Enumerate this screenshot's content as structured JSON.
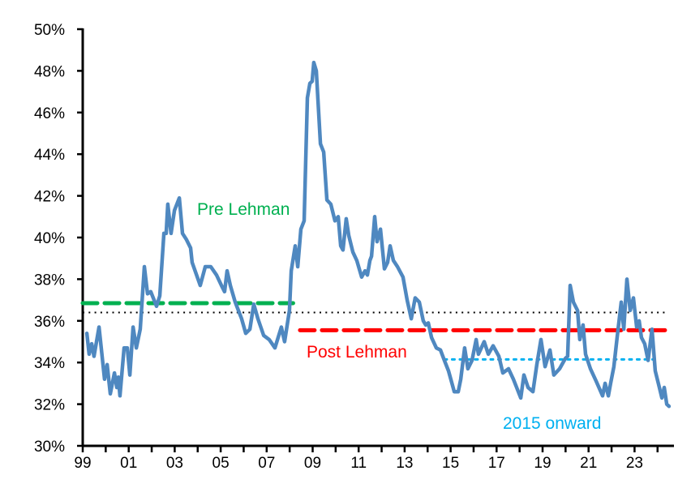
{
  "chart_data": {
    "type": "line",
    "title": "",
    "xlabel": "",
    "ylabel": "",
    "ylim": [
      30,
      50
    ],
    "xlim": [
      1999,
      2024.9
    ],
    "grid": false,
    "y_ticks": [
      "30%",
      "32%",
      "34%",
      "36%",
      "38%",
      "40%",
      "42%",
      "44%",
      "46%",
      "48%",
      "50%"
    ],
    "y_tick_values": [
      30,
      32,
      34,
      36,
      38,
      40,
      42,
      44,
      46,
      48,
      50
    ],
    "x_ticks": [
      "99",
      "01",
      "03",
      "05",
      "07",
      "09",
      "11",
      "13",
      "15",
      "17",
      "19",
      "21",
      "23"
    ],
    "x_tick_values": [
      1999,
      2001,
      2003,
      2005,
      2007,
      2009,
      2011,
      2013,
      2015,
      2017,
      2019,
      2021,
      2023
    ],
    "series": [
      {
        "color": "#4F88C0",
        "x": [
          1999.18,
          1999.28,
          1999.39,
          1999.49,
          1999.71,
          1999.95,
          2000.06,
          2000.2,
          2000.38,
          2000.48,
          2000.55,
          2000.62,
          2000.8,
          2000.94,
          2001.05,
          2001.19,
          2001.33,
          2001.5,
          2001.68,
          2001.82,
          2001.96,
          2002.21,
          2002.35,
          2002.53,
          2002.63,
          2002.7,
          2002.84,
          2002.99,
          2003.2,
          2003.34,
          2003.51,
          2003.69,
          2003.76,
          2004.11,
          2004.33,
          2004.57,
          2004.82,
          2005.03,
          2005.17,
          2005.28,
          2005.42,
          2005.63,
          2005.91,
          2006.09,
          2006.27,
          2006.44,
          2006.62,
          2006.87,
          2007.11,
          2007.36,
          2007.64,
          2007.78,
          2007.99,
          2008.07,
          2008.24,
          2008.35,
          2008.49,
          2008.63,
          2008.77,
          2008.88,
          2008.98,
          2009.05,
          2009.16,
          2009.34,
          2009.48,
          2009.62,
          2009.79,
          2009.97,
          2010.11,
          2010.22,
          2010.32,
          2010.46,
          2010.57,
          2010.75,
          2010.92,
          2011.13,
          2011.28,
          2011.38,
          2011.49,
          2011.56,
          2011.7,
          2011.8,
          2011.95,
          2012.12,
          2012.26,
          2012.37,
          2012.51,
          2012.69,
          2012.93,
          2013.11,
          2013.29,
          2013.46,
          2013.64,
          2013.81,
          2013.92,
          2014.03,
          2014.17,
          2014.38,
          2014.56,
          2014.73,
          2014.91,
          2015.16,
          2015.33,
          2015.44,
          2015.61,
          2015.75,
          2015.93,
          2016.11,
          2016.21,
          2016.46,
          2016.64,
          2016.85,
          2017.1,
          2017.27,
          2017.52,
          2017.73,
          2018.05,
          2018.19,
          2018.37,
          2018.58,
          2018.75,
          2018.93,
          2019.11,
          2019.32,
          2019.49,
          2019.74,
          2019.99,
          2020.09,
          2020.2,
          2020.34,
          2020.52,
          2020.62,
          2020.76,
          2020.87,
          2021.08,
          2021.33,
          2021.61,
          2021.72,
          2021.86,
          2021.96,
          2022.1,
          2022.24,
          2022.42,
          2022.53,
          2022.67,
          2022.81,
          2022.95,
          2023.09,
          2023.2,
          2023.3,
          2023.44,
          2023.59,
          2023.76,
          2023.9,
          2024.08,
          2024.19,
          2024.29,
          2024.4,
          2024.5
        ],
        "values": [
          35.4,
          34.4,
          34.9,
          34.3,
          35.7,
          33.2,
          33.9,
          32.5,
          33.5,
          32.8,
          33.3,
          32.4,
          34.7,
          34.7,
          33.4,
          35.7,
          34.7,
          35.6,
          38.6,
          37.3,
          37.4,
          36.7,
          37.2,
          40.2,
          40.2,
          41.6,
          40.2,
          41.3,
          41.9,
          40.2,
          39.9,
          39.5,
          38.8,
          37.7,
          38.6,
          38.6,
          38.2,
          37.7,
          37.4,
          38.4,
          37.7,
          36.9,
          36.1,
          35.4,
          35.6,
          36.8,
          36.1,
          35.3,
          35.1,
          34.7,
          35.7,
          35.0,
          36.5,
          38.4,
          39.6,
          38.6,
          40.4,
          40.8,
          46.7,
          47.4,
          47.5,
          48.4,
          48.0,
          44.5,
          44.1,
          41.8,
          41.6,
          40.8,
          41.0,
          39.6,
          39.4,
          40.9,
          40.1,
          39.3,
          38.9,
          38.1,
          38.4,
          38.2,
          38.9,
          39.1,
          41.0,
          39.8,
          40.4,
          38.5,
          38.8,
          39.6,
          38.9,
          38.6,
          38.1,
          37.0,
          36.1,
          37.1,
          36.9,
          36.0,
          35.8,
          35.9,
          35.2,
          34.7,
          34.6,
          34.1,
          33.6,
          32.6,
          32.6,
          33.2,
          34.7,
          33.7,
          34.1,
          35.1,
          34.4,
          35.0,
          34.4,
          34.8,
          34.3,
          33.5,
          33.7,
          33.2,
          32.3,
          33.4,
          32.8,
          32.6,
          33.9,
          35.1,
          33.8,
          34.6,
          33.4,
          33.7,
          34.2,
          34.3,
          37.7,
          36.9,
          36.5,
          35.1,
          35.8,
          34.4,
          33.7,
          33.1,
          32.4,
          33.0,
          32.4,
          33.0,
          33.8,
          35.2,
          36.9,
          35.6,
          38.0,
          36.5,
          37.1,
          35.7,
          36.0,
          35.2,
          34.9,
          34.1,
          35.6,
          33.6,
          32.8,
          32.3,
          32.8,
          32.0,
          31.9
        ]
      }
    ],
    "reference_lines": [
      {
        "label": "Pre Lehman",
        "value": 36.85,
        "x_from": 1999.0,
        "x_to": 2008.15,
        "color": "#00B050",
        "style": "dashed"
      },
      {
        "label": "",
        "value": 36.4,
        "x_from": 1999.0,
        "x_to": 2024.4,
        "color": "#000000",
        "style": "dotted"
      },
      {
        "label": "Post Lehman",
        "value": 35.55,
        "x_from": 2008.45,
        "x_to": 2024.35,
        "color": "#FF0000",
        "style": "dashed"
      },
      {
        "label": "2015 onward",
        "value": 34.15,
        "x_from": 2014.73,
        "x_to": 2023.97,
        "color": "#00B0F0",
        "style": "dotted"
      }
    ]
  }
}
